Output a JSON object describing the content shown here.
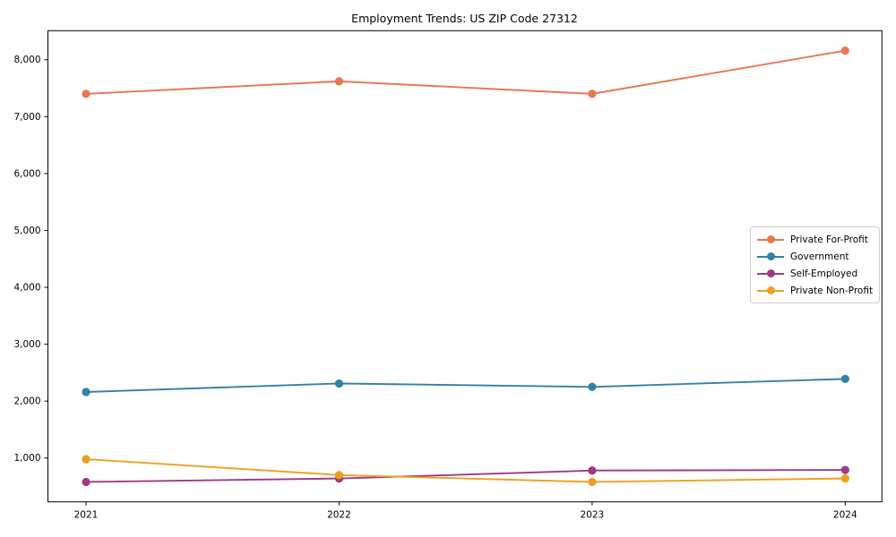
{
  "title": "Employment Trends: US ZIP Code 27312",
  "chart_data": {
    "type": "line",
    "title": "Employment Trends: US ZIP Code 27312",
    "xlabel": "",
    "ylabel": "",
    "x": [
      "2021",
      "2022",
      "2023",
      "2024"
    ],
    "yticks": [
      1000,
      2000,
      3000,
      4000,
      5000,
      6000,
      7000,
      8000
    ],
    "ytick_labels": [
      "1,000",
      "2,000",
      "3,000",
      "4,000",
      "5,000",
      "6,000",
      "7,000",
      "8,000"
    ],
    "ylim": [
      230,
      8510
    ],
    "grid": false,
    "legend_position": "center-right",
    "series": [
      {
        "name": "Private For-Profit",
        "color": "#e8764e",
        "values": [
          7400,
          7620,
          7400,
          8160
        ]
      },
      {
        "name": "Government",
        "color": "#3182a3",
        "values": [
          2160,
          2310,
          2250,
          2390
        ]
      },
      {
        "name": "Self-Employed",
        "color": "#a03a80",
        "values": [
          580,
          640,
          780,
          790
        ]
      },
      {
        "name": "Private Non-Profit",
        "color": "#f09e1f",
        "values": [
          980,
          700,
          580,
          640
        ]
      }
    ]
  }
}
